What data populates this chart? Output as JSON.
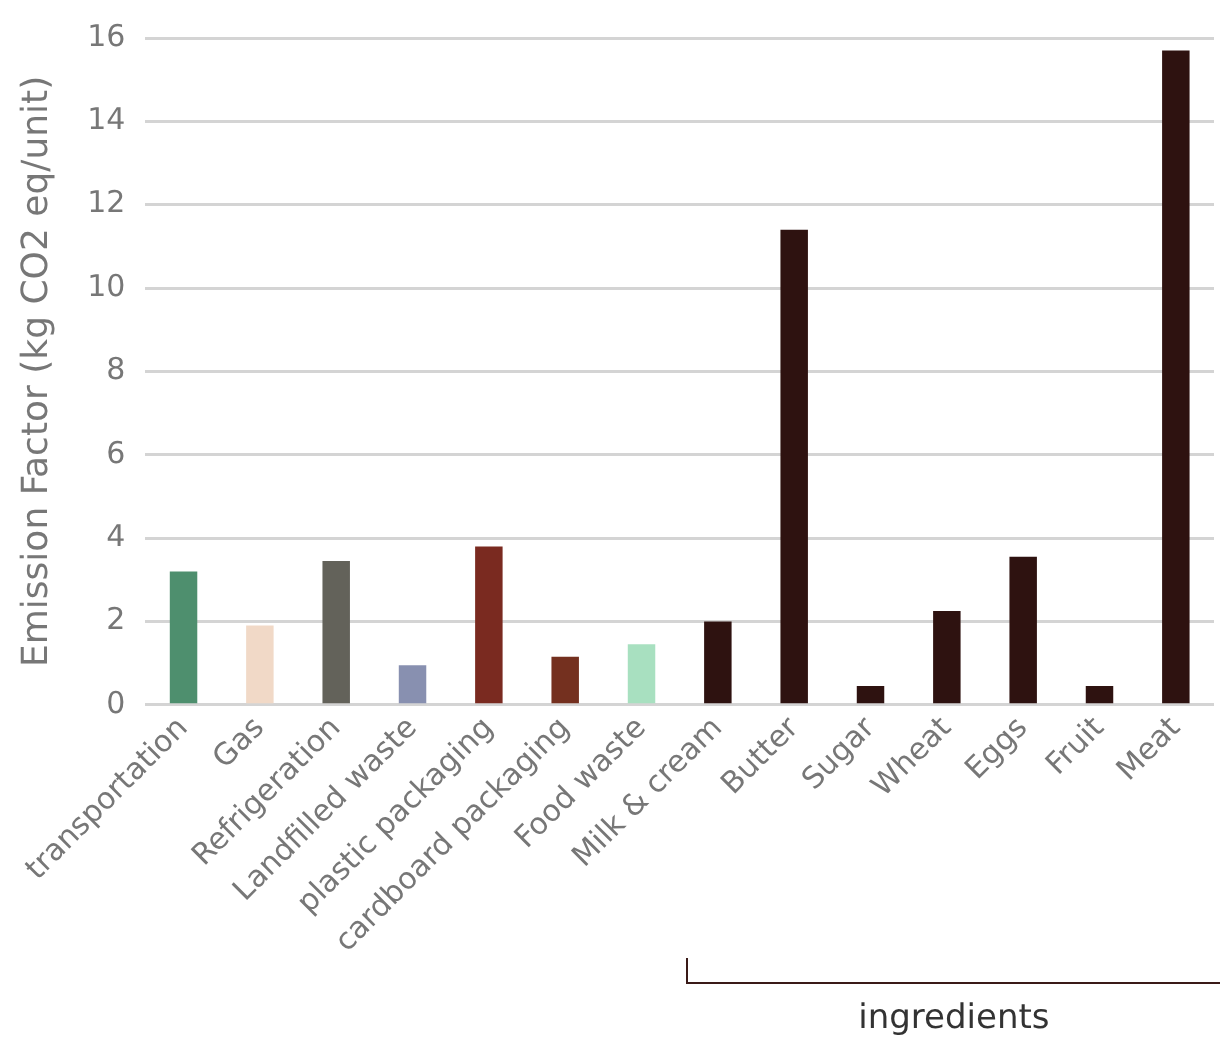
{
  "chart_data": {
    "type": "bar",
    "ylabel": "Emission Factor (kg CO2 eq/unit)",
    "categories": [
      "transportation",
      "Gas",
      "Refrigeration",
      "Landfilled waste",
      "plastic packaging",
      "cardboard packaging",
      "Food waste",
      "Milk & cream",
      "Butter",
      "Sugar",
      "Wheat",
      "Eggs",
      "Fruit",
      "Meat"
    ],
    "values": [
      3.2,
      1.9,
      3.45,
      0.95,
      3.8,
      1.15,
      1.45,
      2.0,
      11.4,
      0.45,
      2.25,
      3.55,
      0.45,
      15.7
    ],
    "colors": [
      "#4e8f6e",
      "#f1d9c7",
      "#63625a",
      "#8890b0",
      "#7a2a20",
      "#74301f",
      "#a8e0c0",
      "#2e1210",
      "#2e1210",
      "#2e1210",
      "#2e1210",
      "#2e1210",
      "#2e1210",
      "#2e1210"
    ],
    "ylim": [
      0,
      16
    ],
    "yticks": [
      0,
      2,
      4,
      6,
      8,
      10,
      12,
      14,
      16
    ],
    "grid": "y",
    "legend": false,
    "annotations": [
      "ingredients"
    ]
  }
}
